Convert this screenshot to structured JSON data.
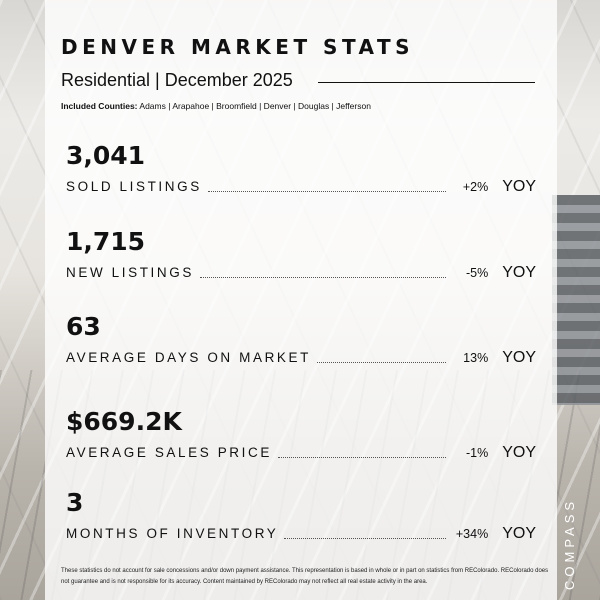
{
  "header": {
    "title": "DENVER MARKET STATS",
    "subtitle": "Residential | December 2025",
    "counties_label": "Included Counties:",
    "counties_list": "Adams | Arapahoe | Broomfield | Denver | Douglas | Jefferson"
  },
  "metrics": [
    {
      "value": "3,041",
      "label": "SOLD LISTINGS",
      "change": "+2%",
      "yoy": "YOY"
    },
    {
      "value": "1,715",
      "label": "NEW LISTINGS",
      "change": "-5%",
      "yoy": "YOY"
    },
    {
      "value": "63",
      "label": "AVERAGE DAYS ON MARKET",
      "change": "13%",
      "yoy": "YOY"
    },
    {
      "value": "$669.2K",
      "label": "AVERAGE SALES PRICE",
      "change": "-1%",
      "yoy": "YOY"
    },
    {
      "value": "3",
      "label": "MONTHS OF INVENTORY",
      "change": "+34%",
      "yoy": "YOY"
    }
  ],
  "footer": {
    "disclaimer": "These statistics do not account for sale concessions and/or down payment assistance. This representation is based in whole or in part on statistics from REColorado. REColorado does not guarantee and is not responsible for its accuracy. Content maintained by REColorado may not reflect all real estate activity in the area.",
    "brand": "COMPASS"
  }
}
